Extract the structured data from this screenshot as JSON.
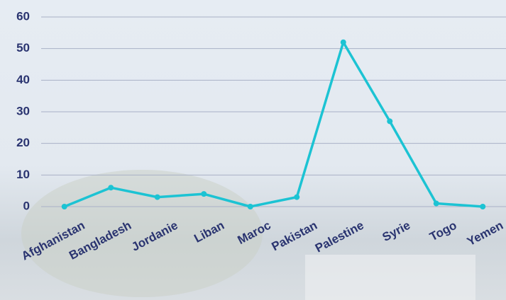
{
  "chart_data": {
    "type": "line",
    "categories": [
      "Afghanistan",
      "Bangladesh",
      "Jordanie",
      "Liban",
      "Maroc",
      "Pakistan",
      "Palestine",
      "Syrie",
      "Togo",
      "Yemen"
    ],
    "values": [
      0,
      6,
      3,
      4,
      0,
      3,
      52,
      27,
      1,
      0
    ],
    "color": "#1cc3d3",
    "ylim": [
      0,
      60
    ],
    "yticks": [
      0,
      10,
      20,
      30,
      40,
      50,
      60
    ],
    "grid": true
  }
}
